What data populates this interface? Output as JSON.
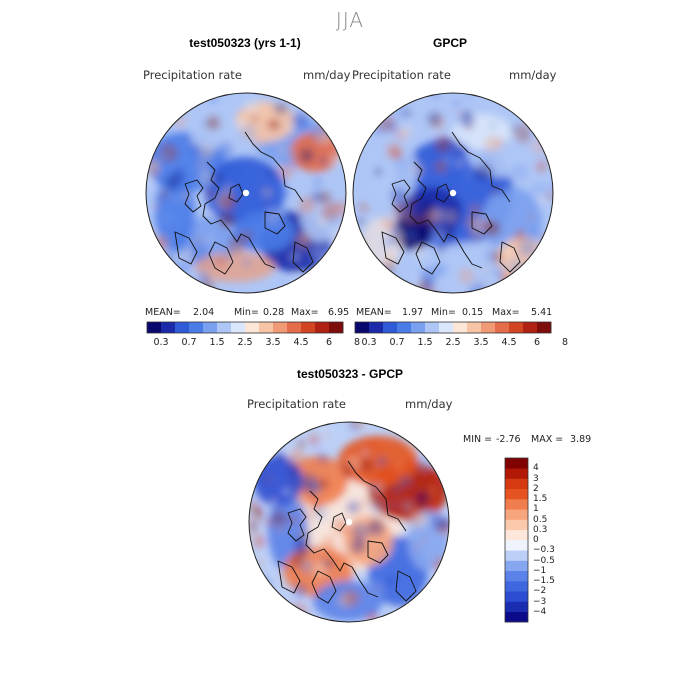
{
  "figure": {
    "suptitle": "JJA",
    "panels": [
      {
        "title": "test050323 (yrs 1-1)",
        "variable_label": "Precipitation rate",
        "units": "mm/day",
        "stats": {
          "mean_label": "MEAN=",
          "mean": "2.04",
          "min_label": "Min=",
          "min": "0.28",
          "max_label": "Max=",
          "max": "6.95"
        }
      },
      {
        "title": "GPCP",
        "variable_label": "Precipitation rate",
        "units": "mm/day",
        "stats": {
          "mean_label": "MEAN=",
          "mean": "1.97",
          "min_label": "Min=",
          "min": "0.15",
          "max_label": "Max=",
          "max": "5.41"
        }
      },
      {
        "title": "test050323 - GPCP",
        "variable_label": "Precipitation rate",
        "units": "mm/day",
        "stats": {
          "min_label": "MIN =",
          "min": "-2.76",
          "max_label": "MAX =",
          "max": "3.89"
        }
      }
    ],
    "precip_colorbar": {
      "colors": [
        "#08086e",
        "#1a2aa8",
        "#2f5ad8",
        "#4a7ce8",
        "#7aa0f0",
        "#aec6f6",
        "#d9e6fb",
        "#fbe6d8",
        "#f7c4a6",
        "#f09a78",
        "#e56c4a",
        "#d24422",
        "#b02314",
        "#7e0c0a"
      ],
      "tick_labels": [
        "0.3",
        "0.7",
        "1.5",
        "2.5",
        "3.5",
        "4.5",
        "6",
        "8"
      ]
    },
    "diff_colorbar": {
      "colors": [
        "#0a0a8a",
        "#1a2cb0",
        "#2c4cd2",
        "#3f68e0",
        "#5b82e8",
        "#86a6ef",
        "#bcd0f7",
        "#eef3fd",
        "#fde7da",
        "#fbc9ab",
        "#f7a57c",
        "#f07d4e",
        "#e55420",
        "#d63a10",
        "#b11806",
        "#800202"
      ],
      "tick_labels": [
        "4",
        "3",
        "2",
        "1.5",
        "1",
        "0.5",
        "0.3",
        "0",
        "-0.3",
        "-0.5",
        "-1",
        "-1.5",
        "-2",
        "-3",
        "-4"
      ]
    },
    "map_layers": {
      "panel_1": "model precipitation field",
      "panel_2": "observed precipitation field",
      "panel_3": "difference field"
    }
  }
}
